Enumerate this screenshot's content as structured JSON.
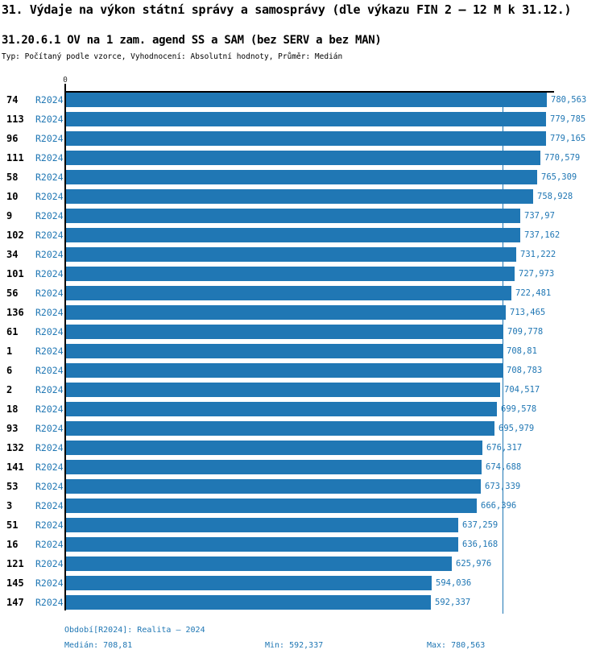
{
  "header": {
    "title": "31. Výdaje na výkon státní správy a samosprávy (dle výkazu FIN 2 – 12 M k 31.12.)",
    "subtitle": "31.20.6.1 OV na 1 zam. agend SS a SAM (bez SERV a bez MAN)",
    "meta": "Typ: Počítaný podle vzorce, Vyhodnocení: Absolutní hodnoty, Průměr: Medián"
  },
  "chart": {
    "zero_label": "0",
    "period_label": "R2024"
  },
  "colors": {
    "bar": "#2077b4",
    "blue_text": "#2077b4",
    "axis": "#000000",
    "background": "#ffffff"
  },
  "chart_data": {
    "type": "bar",
    "orientation": "horizontal",
    "title": "31. Výdaje na výkon státní správy a samosprávy (dle výkazu FIN 2 – 12 M k 31.12.)",
    "subtitle": "31.20.6.1 OV na 1 zam. agend SS a SAM (bez SERV a bez MAN)",
    "categories": [
      "74",
      "113",
      "96",
      "111",
      "58",
      "10",
      "9",
      "102",
      "34",
      "101",
      "56",
      "136",
      "61",
      "1",
      "6",
      "2",
      "18",
      "93",
      "132",
      "141",
      "53",
      "3",
      "51",
      "16",
      "121",
      "145",
      "147"
    ],
    "series": [
      {
        "name": "R2024",
        "values": [
          780.563,
          779.785,
          779.165,
          770.579,
          765.309,
          758.928,
          737.97,
          737.162,
          731.222,
          727.973,
          722.481,
          713.465,
          709.778,
          708.81,
          708.783,
          704.517,
          699.578,
          695.979,
          676.317,
          674.688,
          673.339,
          666.396,
          637.259,
          636.168,
          625.976,
          594.036,
          592.337
        ]
      }
    ],
    "value_labels": [
      "780,563",
      "779,785",
      "779,165",
      "770,579",
      "765,309",
      "758,928",
      "737,97",
      "737,162",
      "731,222",
      "727,973",
      "722,481",
      "713,465",
      "709,778",
      "708,81",
      "708,783",
      "704,517",
      "699,578",
      "695,979",
      "676,317",
      "674,688",
      "673,339",
      "666,396",
      "637,259",
      "636,168",
      "625,976",
      "594,036",
      "592,337"
    ],
    "xlabel": "",
    "ylabel": "",
    "xlim": [
      0,
      790
    ],
    "x_zero_tick": "0",
    "grid": false,
    "legend_position": "none",
    "median_line": true,
    "median": 708.81,
    "min": 592.337,
    "max": 780.563
  },
  "footer": {
    "period_line": "Období[R2024]: Realita – 2024",
    "median": "Medián: 708,81",
    "min": "Min: 592,337",
    "max": "Max: 780,563"
  }
}
